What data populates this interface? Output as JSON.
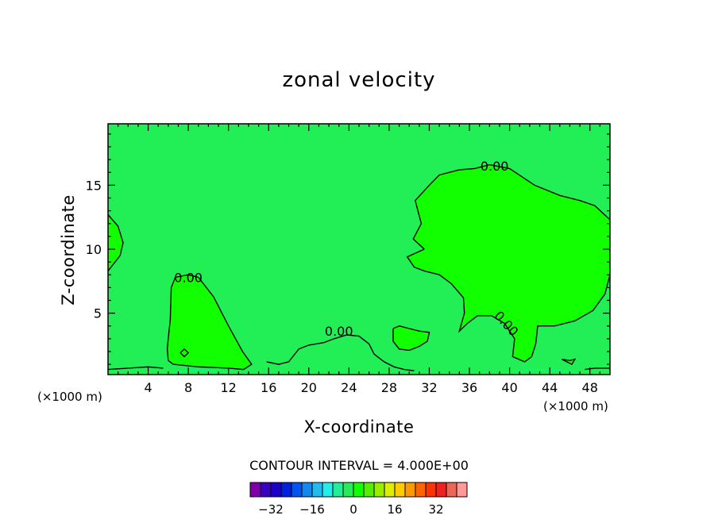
{
  "chart_data": {
    "type": "contour",
    "title": "zonal velocity",
    "xlabel": "X-coordinate",
    "ylabel": "Z-coordinate",
    "x_units": "(×1000 m)",
    "y_units": "(×1000 m)",
    "xlim": [
      0,
      50
    ],
    "ylim": [
      0.2,
      19.8
    ],
    "xticks": [
      4,
      8,
      12,
      16,
      20,
      24,
      28,
      32,
      36,
      40,
      44,
      48
    ],
    "yticks": [
      5,
      10,
      15
    ],
    "contour_interval_label": "CONTOUR INTERVAL = 4.000E+00",
    "contour_labels": [
      {
        "text": "0.00",
        "x": 38.5,
        "z": 16.5
      },
      {
        "text": "0.00",
        "x": 8,
        "z": 7.8
      },
      {
        "text": "0.00",
        "x": 23,
        "z": 3.6
      },
      {
        "text": "0.00",
        "x": 39.7,
        "z": 4.2
      }
    ],
    "background_color": "#22ee55",
    "positive_region_color": "#11ff00",
    "zero_contours": [
      [
        [
          0,
          12.7
        ],
        [
          1,
          11.8
        ],
        [
          1.5,
          10.5
        ],
        [
          1.2,
          9.5
        ],
        [
          0,
          8.3
        ]
      ],
      [
        [
          6,
          3
        ],
        [
          6.2,
          4.5
        ],
        [
          6.3,
          7
        ],
        [
          6.7,
          7.8
        ],
        [
          8,
          8
        ],
        [
          9,
          7.8
        ],
        [
          10.5,
          6.3
        ],
        [
          12,
          4
        ],
        [
          13.4,
          2
        ],
        [
          14.3,
          1
        ],
        [
          13.5,
          0.6
        ],
        [
          12,
          0.7
        ],
        [
          9,
          0.8
        ],
        [
          6.5,
          1
        ],
        [
          6,
          1.3
        ],
        [
          5.9,
          2.2
        ],
        [
          6,
          3
        ]
      ],
      [
        [
          31.5,
          10
        ],
        [
          30.4,
          10.8
        ],
        [
          31.2,
          12
        ],
        [
          30.6,
          13.8
        ],
        [
          32,
          15
        ],
        [
          33,
          15.8
        ],
        [
          35,
          16.2
        ],
        [
          36.5,
          16.3
        ],
        [
          38,
          16.6
        ],
        [
          40,
          16.3
        ],
        [
          42.5,
          15
        ],
        [
          45,
          14.2
        ],
        [
          47,
          13.8
        ],
        [
          48.5,
          13.4
        ],
        [
          50,
          12.3
        ],
        [
          50,
          8
        ],
        [
          49.5,
          6.5
        ],
        [
          48.3,
          5.2
        ],
        [
          46.5,
          4.4
        ],
        [
          44.5,
          4
        ],
        [
          42.8,
          4
        ],
        [
          42.6,
          2.6
        ],
        [
          42.2,
          1.6
        ],
        [
          41.5,
          1.2
        ],
        [
          40.3,
          1.6
        ],
        [
          40.5,
          3
        ],
        [
          39.5,
          4.2
        ],
        [
          38.2,
          4.8
        ],
        [
          36.8,
          4.8
        ],
        [
          35.8,
          4.2
        ],
        [
          35,
          3.6
        ],
        [
          35.5,
          5
        ],
        [
          35.4,
          6.2
        ],
        [
          34.2,
          7.3
        ],
        [
          33,
          8
        ],
        [
          31.5,
          8.3
        ],
        [
          30.5,
          8.6
        ],
        [
          29.8,
          9.4
        ],
        [
          31.5,
          10
        ]
      ],
      [
        [
          28.4,
          3.8
        ],
        [
          29,
          4
        ],
        [
          30,
          3.8
        ],
        [
          31,
          3.6
        ],
        [
          32,
          3.5
        ],
        [
          31.8,
          2.8
        ],
        [
          31,
          2.4
        ],
        [
          30,
          2.1
        ],
        [
          29,
          2.2
        ],
        [
          28.4,
          2.8
        ],
        [
          28.4,
          3.8
        ]
      ],
      [
        [
          0,
          0.6
        ],
        [
          2,
          0.7
        ],
        [
          4,
          0.8
        ],
        [
          5.5,
          0.7
        ]
      ],
      [
        [
          15.8,
          1.2
        ],
        [
          17,
          1
        ],
        [
          18,
          1.2
        ],
        [
          19,
          2.2
        ],
        [
          20,
          2.5
        ],
        [
          21.5,
          2.7
        ],
        [
          22.5,
          3
        ],
        [
          23.8,
          3.3
        ],
        [
          25,
          3.2
        ],
        [
          26,
          2.6
        ],
        [
          26.5,
          1.8
        ],
        [
          27.5,
          1.2
        ],
        [
          28.5,
          0.8
        ],
        [
          29.5,
          0.6
        ],
        [
          30.5,
          0.5
        ]
      ],
      [
        [
          7.2,
          1.9
        ],
        [
          7.6,
          2.2
        ],
        [
          8,
          1.9
        ],
        [
          7.6,
          1.6
        ],
        [
          7.2,
          1.9
        ]
      ],
      [
        [
          45.2,
          1.4
        ],
        [
          46,
          1.3
        ],
        [
          46.5,
          1.4
        ],
        [
          46.2,
          1
        ],
        [
          45.2,
          1.4
        ]
      ],
      [
        [
          47.5,
          0.6
        ],
        [
          48.5,
          0.7
        ],
        [
          50,
          0.7
        ]
      ]
    ],
    "negative_dashed_contours": [
      [
        [
          6,
          0.2
        ],
        [
          7.5,
          0.5
        ],
        [
          9.5,
          0.55
        ],
        [
          11.5,
          0.4
        ],
        [
          12.5,
          0.2
        ]
      ],
      [
        [
          40.5,
          0.2
        ],
        [
          41.5,
          0.55
        ],
        [
          43,
          0.6
        ],
        [
          45.5,
          0.5
        ],
        [
          47,
          0.2
        ]
      ]
    ],
    "colorbar": {
      "colors": [
        "#7f00aa",
        "#3a00c0",
        "#1c00c8",
        "#0022e0",
        "#0055ee",
        "#1188f0",
        "#22bbf0",
        "#22eeee",
        "#22ee99",
        "#22ee55",
        "#11ff00",
        "#55ee00",
        "#99ee00",
        "#ddee00",
        "#ffcc00",
        "#ff9900",
        "#ff6600",
        "#ff3300",
        "#ee2222",
        "#ee6655",
        "#ff9999"
      ],
      "tick_labels": [
        "-32",
        "-16",
        "0",
        "16",
        "32"
      ],
      "tick_values": [
        -32,
        -16,
        0,
        16,
        32
      ],
      "min": -40,
      "max": 44
    }
  }
}
